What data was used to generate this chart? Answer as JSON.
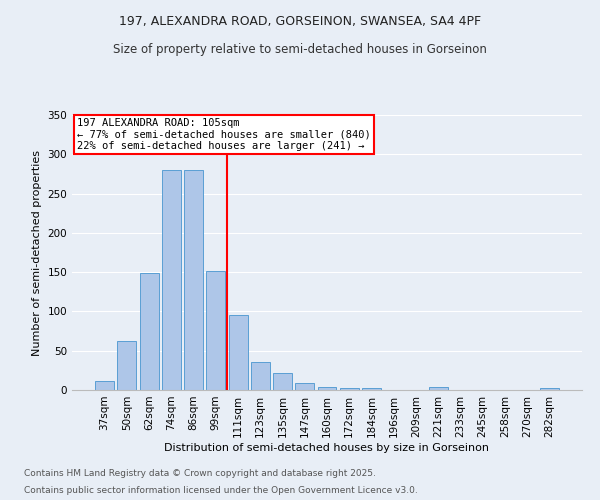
{
  "title": "197, ALEXANDRA ROAD, GORSEINON, SWANSEA, SA4 4PF",
  "subtitle": "Size of property relative to semi-detached houses in Gorseinon",
  "xlabel": "Distribution of semi-detached houses by size in Gorseinon",
  "ylabel": "Number of semi-detached properties",
  "categories": [
    "37sqm",
    "50sqm",
    "62sqm",
    "74sqm",
    "86sqm",
    "99sqm",
    "111sqm",
    "123sqm",
    "135sqm",
    "147sqm",
    "160sqm",
    "172sqm",
    "184sqm",
    "196sqm",
    "209sqm",
    "221sqm",
    "233sqm",
    "245sqm",
    "258sqm",
    "270sqm",
    "282sqm"
  ],
  "values": [
    11,
    63,
    149,
    280,
    280,
    152,
    96,
    36,
    22,
    9,
    4,
    3,
    3,
    0,
    0,
    4,
    0,
    0,
    0,
    0,
    2
  ],
  "bar_color": "#aec6e8",
  "bar_edge_color": "#5a9fd4",
  "bg_color": "#e8eef6",
  "grid_color": "#ffffff",
  "vline_x_index": 5.5,
  "vline_color": "red",
  "annotation_title": "197 ALEXANDRA ROAD: 105sqm",
  "annotation_line1": "← 77% of semi-detached houses are smaller (840)",
  "annotation_line2": "22% of semi-detached houses are larger (241) →",
  "annotation_box_color": "white",
  "annotation_box_edge": "red",
  "ylim": [
    0,
    350
  ],
  "yticks": [
    0,
    50,
    100,
    150,
    200,
    250,
    300,
    350
  ],
  "footer1": "Contains HM Land Registry data © Crown copyright and database right 2025.",
  "footer2": "Contains public sector information licensed under the Open Government Licence v3.0.",
  "title_fontsize": 9,
  "subtitle_fontsize": 8.5,
  "ylabel_fontsize": 8,
  "xlabel_fontsize": 8,
  "tick_fontsize": 7.5,
  "footer_fontsize": 6.5,
  "annot_fontsize": 7.5
}
